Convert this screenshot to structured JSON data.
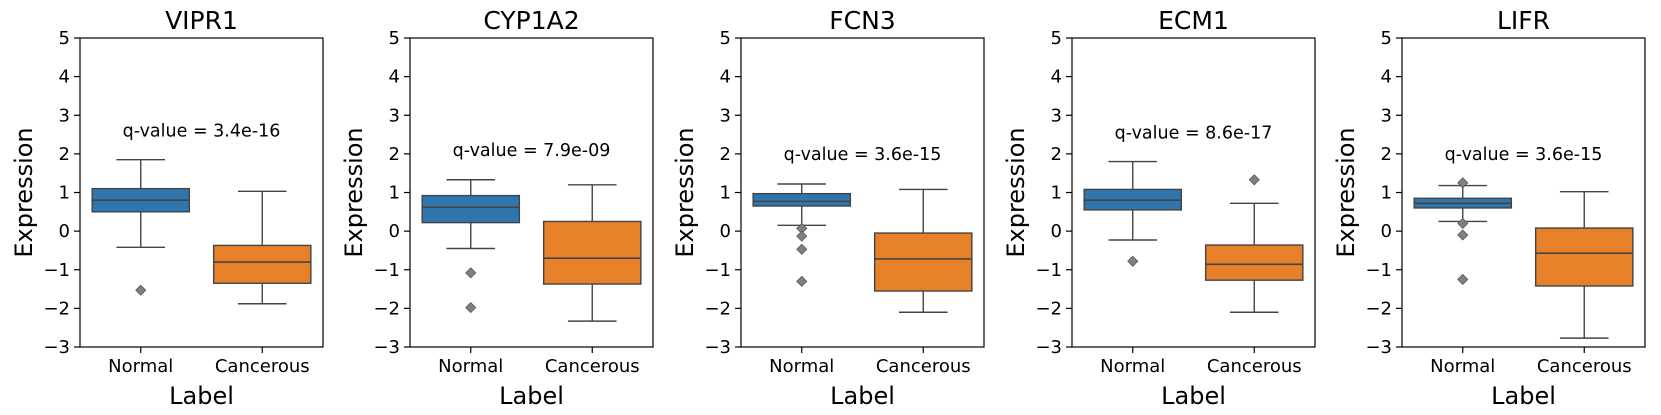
{
  "chart_data": {
    "type": "box",
    "shared": {
      "xlabel": "Label",
      "ylabel": "Expression",
      "categories": [
        "Normal",
        "Cancerous"
      ],
      "yticks": [
        -3,
        -2,
        -1,
        0,
        1,
        2,
        3,
        4,
        5
      ],
      "ylim": [
        -3,
        5
      ],
      "colors": {
        "Normal": "#2f76ae",
        "Cancerous": "#e6812a"
      }
    },
    "panels": [
      {
        "title": "VIPR1",
        "annotation": "q-value = 3.4e-16",
        "annotation_y": 2.6,
        "groups": [
          {
            "label": "Normal",
            "whisker_low": -0.42,
            "q1": 0.5,
            "median": 0.8,
            "q3": 1.1,
            "whisker_high": 1.85,
            "outliers": [
              -1.53
            ]
          },
          {
            "label": "Cancerous",
            "whisker_low": -1.88,
            "q1": -1.35,
            "median": -0.8,
            "q3": -0.37,
            "whisker_high": 1.03,
            "outliers": []
          }
        ]
      },
      {
        "title": "CYP1A2",
        "annotation": "q-value = 7.9e-09",
        "annotation_y": 2.1,
        "groups": [
          {
            "label": "Normal",
            "whisker_low": -0.45,
            "q1": 0.22,
            "median": 0.62,
            "q3": 0.92,
            "whisker_high": 1.33,
            "outliers": [
              -1.08,
              -1.98
            ]
          },
          {
            "label": "Cancerous",
            "whisker_low": -2.33,
            "q1": -1.37,
            "median": -0.7,
            "q3": 0.25,
            "whisker_high": 1.2,
            "outliers": []
          }
        ]
      },
      {
        "title": "FCN3",
        "annotation": "q-value = 3.6e-15",
        "annotation_y": 2.0,
        "groups": [
          {
            "label": "Normal",
            "whisker_low": 0.15,
            "q1": 0.65,
            "median": 0.77,
            "q3": 0.97,
            "whisker_high": 1.22,
            "outliers": [
              0.07,
              -0.13,
              -0.47,
              -1.3
            ]
          },
          {
            "label": "Cancerous",
            "whisker_low": -2.1,
            "q1": -1.55,
            "median": -0.72,
            "q3": -0.05,
            "whisker_high": 1.08,
            "outliers": []
          }
        ]
      },
      {
        "title": "ECM1",
        "annotation": "q-value = 8.6e-17",
        "annotation_y": 2.55,
        "groups": [
          {
            "label": "Normal",
            "whisker_low": -0.23,
            "q1": 0.55,
            "median": 0.8,
            "q3": 1.08,
            "whisker_high": 1.8,
            "outliers": [
              -0.78
            ]
          },
          {
            "label": "Cancerous",
            "whisker_low": -2.1,
            "q1": -1.27,
            "median": -0.86,
            "q3": -0.36,
            "whisker_high": 0.72,
            "outliers": [
              1.33
            ]
          }
        ]
      },
      {
        "title": "LIFR",
        "annotation": "q-value = 3.6e-15",
        "annotation_y": 2.0,
        "groups": [
          {
            "label": "Normal",
            "whisker_low": 0.25,
            "q1": 0.6,
            "median": 0.72,
            "q3": 0.85,
            "whisker_high": 1.18,
            "outliers": [
              1.25,
              0.2,
              -0.1,
              -1.25
            ]
          },
          {
            "label": "Cancerous",
            "whisker_low": -2.77,
            "q1": -1.42,
            "median": -0.57,
            "q3": 0.08,
            "whisker_high": 1.02,
            "outliers": []
          }
        ]
      }
    ]
  }
}
